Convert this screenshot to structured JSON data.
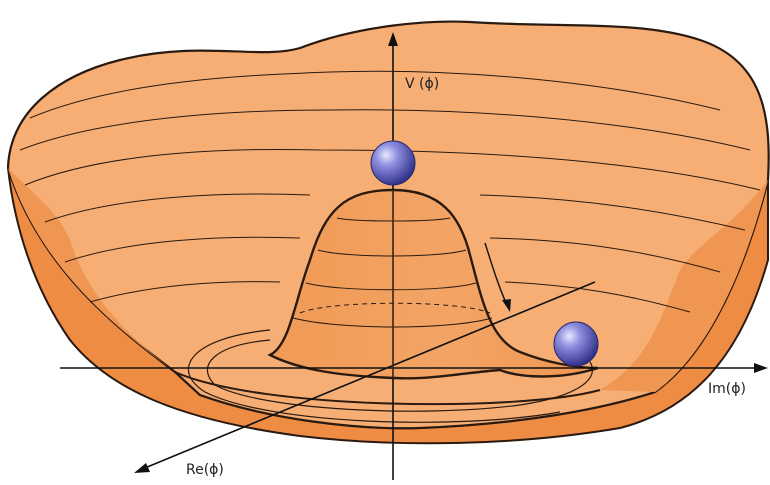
{
  "labels": {
    "v_phi": "V (ϕ)",
    "im_phi": "Im(ϕ)",
    "re_phi": "Re(ϕ)"
  },
  "colors": {
    "bowl_light": "#f6ae74",
    "bowl_mid": "#f3a064",
    "bowl_dark": "#ee8f48",
    "outline": "#2a1a10",
    "ball": "#6f70cc"
  },
  "icons": [
    "ball-top",
    "ball-bottom",
    "roll-arrow"
  ]
}
